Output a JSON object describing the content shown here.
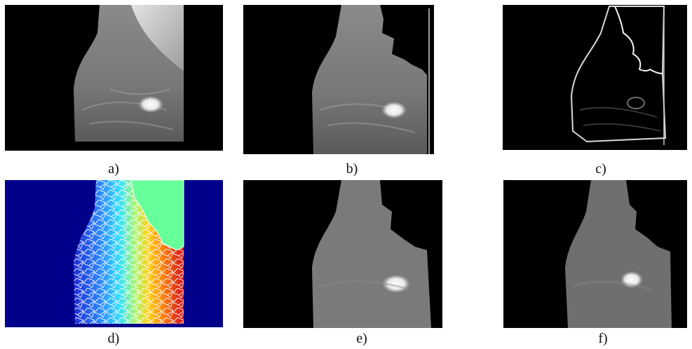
{
  "figure": {
    "panels": [
      {
        "id": "a",
        "caption": "a)",
        "content": "original mammogram with pectoral muscle and bright mass"
      },
      {
        "id": "b",
        "caption": "b)",
        "content": "breast region with pectoral muscle removed"
      },
      {
        "id": "c",
        "caption": "c)",
        "content": "gradient magnitude edge map"
      },
      {
        "id": "d",
        "caption": "d)",
        "content": "watershed over-segmentation colour map"
      },
      {
        "id": "e",
        "caption": "e)",
        "content": "smoothed breast region"
      },
      {
        "id": "f",
        "caption": "f)",
        "content": "segmented mass region result"
      }
    ],
    "colors": {
      "background": "#000000",
      "tissue": "#8a8a8a",
      "mass": "#f2f2f2",
      "muscle": "#c8c8c8",
      "watershed_background": "#00008b",
      "watershed_muscle": "#66ff99",
      "edge": "#e6e6e6"
    }
  }
}
